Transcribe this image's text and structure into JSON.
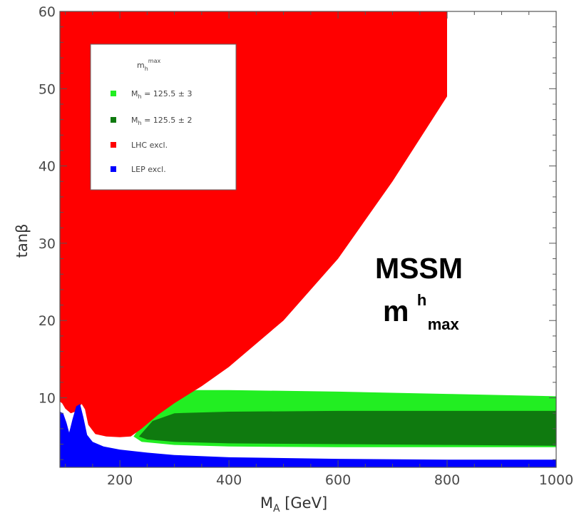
{
  "chart_data": {
    "type": "area",
    "title": "",
    "xlabel": "M_A [GeV]",
    "ylabel": "tanβ",
    "xlim": [
      90,
      1000
    ],
    "ylim": [
      1,
      60
    ],
    "x_ticks": [
      200,
      400,
      600,
      800,
      1000
    ],
    "y_ticks": [
      10,
      20,
      30,
      40,
      50,
      60
    ],
    "grid": false,
    "legend_position": "top-left",
    "legend_title": "m_h^max",
    "annotation": {
      "line1": "MSSM",
      "line2_base": "m",
      "line2_sup": "h",
      "line2_sub": "max"
    },
    "series": [
      {
        "name": "M_h = 125.5 ± 3",
        "label": "M_h = 125.5 ± 3",
        "color": "#22ee22",
        "region": [
          [
            225,
            5.0
          ],
          [
            250,
            7.5
          ],
          [
            290,
            10.0
          ],
          [
            340,
            11.0
          ],
          [
            400,
            11.0
          ],
          [
            600,
            10.8
          ],
          [
            800,
            10.5
          ],
          [
            1000,
            10.2
          ],
          [
            1000,
            3.6
          ],
          [
            800,
            3.6
          ],
          [
            600,
            3.6
          ],
          [
            400,
            3.7
          ],
          [
            300,
            3.9
          ],
          [
            240,
            4.3
          ]
        ]
      },
      {
        "name": "M_h = 125.5 ± 2",
        "label": "M_h = 125.5 ± 2",
        "color": "#0f7a0f",
        "region": [
          [
            235,
            5.0
          ],
          [
            260,
            7.0
          ],
          [
            300,
            8.0
          ],
          [
            400,
            8.2
          ],
          [
            600,
            8.3
          ],
          [
            800,
            8.3
          ],
          [
            1000,
            8.3
          ],
          [
            1000,
            3.8
          ],
          [
            800,
            3.9
          ],
          [
            600,
            4.0
          ],
          [
            400,
            4.1
          ],
          [
            300,
            4.3
          ],
          [
            250,
            4.6
          ]
        ]
      },
      {
        "name": "LHC excl.",
        "label": "LHC excl.",
        "color": "#ff0000",
        "region": [
          [
            90,
            60
          ],
          [
            800,
            60
          ],
          [
            800,
            49
          ],
          [
            700,
            38
          ],
          [
            600,
            28
          ],
          [
            500,
            20
          ],
          [
            400,
            14
          ],
          [
            350,
            11.5
          ],
          [
            300,
            9.3
          ],
          [
            270,
            7.8
          ],
          [
            240,
            6.0
          ],
          [
            220,
            5.0
          ],
          [
            200,
            4.9
          ],
          [
            175,
            5.0
          ],
          [
            155,
            5.3
          ],
          [
            142,
            6.5
          ],
          [
            136,
            8.5
          ],
          [
            130,
            9.2
          ],
          [
            124,
            8.8
          ],
          [
            118,
            8.2
          ],
          [
            110,
            8.0
          ],
          [
            100,
            8.6
          ],
          [
            94,
            9.3
          ],
          [
            90,
            9.5
          ]
        ]
      },
      {
        "name": "LEP excl.",
        "label": "LEP excl.",
        "color": "#0000ff",
        "region": [
          [
            90,
            1
          ],
          [
            1000,
            1
          ],
          [
            1000,
            2.0
          ],
          [
            800,
            2.0
          ],
          [
            600,
            2.1
          ],
          [
            400,
            2.3
          ],
          [
            300,
            2.6
          ],
          [
            250,
            2.9
          ],
          [
            200,
            3.3
          ],
          [
            170,
            3.7
          ],
          [
            150,
            4.3
          ],
          [
            140,
            5.2
          ],
          [
            133,
            7.5
          ],
          [
            127,
            9.2
          ],
          [
            120,
            8.9
          ],
          [
            113,
            7.2
          ],
          [
            107,
            5.5
          ],
          [
            102,
            6.8
          ],
          [
            96,
            8.0
          ],
          [
            90,
            8.2
          ]
        ]
      }
    ]
  }
}
